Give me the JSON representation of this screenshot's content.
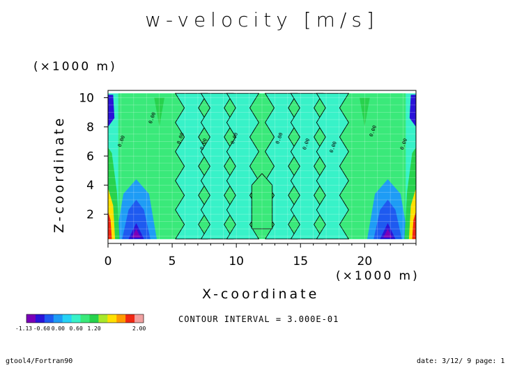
{
  "chart_data": {
    "type": "heatmap",
    "title": "w-velocity [m/s]",
    "xlabel": "X-coordinate",
    "ylabel": "Z-coordinate",
    "x_unit": "(×1000 m)",
    "y_unit": "(×1000 m)",
    "xlim": [
      0,
      24
    ],
    "ylim": [
      0,
      10.5
    ],
    "x_ticks": [
      "0",
      "5",
      "10",
      "15",
      "20"
    ],
    "x_tick_values": [
      0,
      5,
      10,
      15,
      20
    ],
    "y_ticks": [
      "2",
      "4",
      "6",
      "8",
      "10"
    ],
    "y_tick_values": [
      2,
      4,
      6,
      8,
      10
    ],
    "contour_interval_text": "CONTOUR INTERVAL = 3.000E-01",
    "contour_interval": 0.3,
    "contour_label": "0.00",
    "value_range": [
      -1.13,
      2.0
    ],
    "colorbar": {
      "tick_labels": [
        "-1.13",
        "-0.60",
        "0.00",
        "0.60",
        "1.20",
        "2.00"
      ],
      "colors": [
        "#7a00b8",
        "#2a14d8",
        "#1e5af0",
        "#1e9cf5",
        "#26d2f5",
        "#38f2c8",
        "#3ae97a",
        "#27d24d",
        "#a8e82a",
        "#ffe000",
        "#ff9a00",
        "#f02814",
        "#f0a0a0"
      ]
    },
    "regions": [
      {
        "level": "positive",
        "shape": "background band",
        "x_range": [
          0.8,
          23.2
        ],
        "z_range": [
          0.3,
          10.3
        ]
      },
      {
        "level": "negative",
        "shape": "column",
        "x": 6.5,
        "z_range": [
          0.3,
          10.3
        ]
      },
      {
        "level": "negative",
        "shape": "column",
        "x": 8.5,
        "z_range": [
          0.3,
          10.3
        ]
      },
      {
        "level": "negative",
        "shape": "column",
        "x": 10.5,
        "z_range": [
          0.3,
          10.3
        ]
      },
      {
        "level": "negative",
        "shape": "column",
        "x": 13.5,
        "z_range": [
          0.3,
          10.3
        ]
      },
      {
        "level": "negative",
        "shape": "column",
        "x": 15.5,
        "z_range": [
          0.3,
          10.3
        ]
      },
      {
        "level": "negative",
        "shape": "column",
        "x": 17.5,
        "z_range": [
          0.3,
          10.3
        ]
      },
      {
        "level": "min",
        "x": 2.2,
        "z": 0.8,
        "value": -1.13
      },
      {
        "level": "min",
        "x": 21.8,
        "z": 0.8,
        "value": -1.13
      },
      {
        "level": "max",
        "x": 0.1,
        "z": 1.0,
        "value": 2.0
      },
      {
        "level": "max",
        "x": 23.9,
        "z": 1.0,
        "value": 2.0
      }
    ]
  },
  "footer": {
    "left": "gtool4/Fortran90",
    "right": "date: 3/12/ 9 page: 1"
  }
}
